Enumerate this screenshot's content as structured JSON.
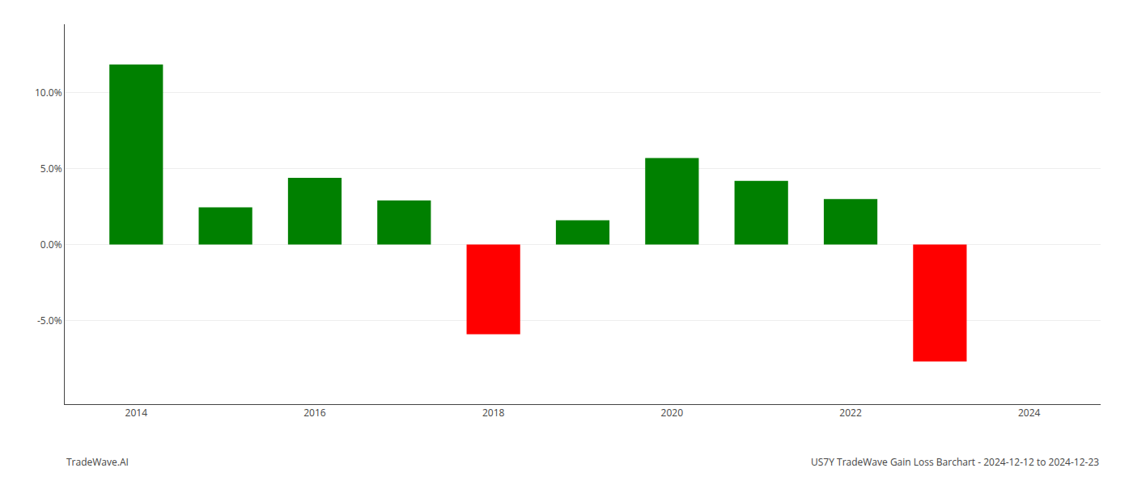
{
  "chart_data": {
    "type": "bar",
    "x": [
      2014,
      2015,
      2016,
      2017,
      2018,
      2019,
      2020,
      2021,
      2022,
      2023
    ],
    "values": [
      0.1185,
      0.0245,
      0.044,
      0.029,
      -0.059,
      0.016,
      0.057,
      0.042,
      0.03,
      -0.077
    ],
    "colors": [
      "#008000",
      "#008000",
      "#008000",
      "#008000",
      "#ff0000",
      "#008000",
      "#008000",
      "#008000",
      "#008000",
      "#ff0000"
    ],
    "xlim": [
      2013.2,
      2024.8
    ],
    "xticks": [
      2014,
      2016,
      2018,
      2020,
      2022,
      2024
    ],
    "ylim": [
      -0.105,
      0.145
    ],
    "yticks": [
      {
        "value": -0.05,
        "label": "-5.0%"
      },
      {
        "value": 0.0,
        "label": "0.0%"
      },
      {
        "value": 0.05,
        "label": "5.0%"
      },
      {
        "value": 0.1,
        "label": "10.0%"
      }
    ],
    "grid": true,
    "annotations": [
      "TradeWave.AI",
      "US7Y TradeWave Gain Loss Barchart - 2024-12-12 to 2024-12-23"
    ]
  }
}
